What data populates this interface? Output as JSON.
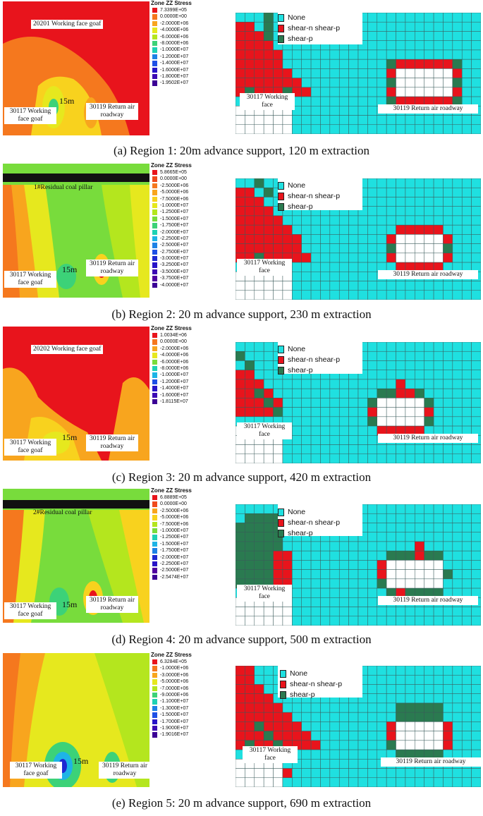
{
  "legend_title": "Zone ZZ Stress",
  "state_colors": {
    "None": "#1fe0e0",
    "shear-n shear-p": "#e8141c",
    "shear-p": "#2a7a50"
  },
  "state_legend": [
    "None",
    "shear-n shear-p",
    "shear-p"
  ],
  "panels": [
    {
      "caption": "(a) Region 1: 20m advance support, 120 m extraction",
      "top_label": "20201 Working face goaf",
      "left_label": "30117 Working face goaf",
      "right_label": "30119 Return air roadway",
      "distance": "15m",
      "grid_left_label": "30117 Working face",
      "grid_right_label": "30119 Return air  roadway",
      "stress_levels": [
        "7.3399E+05",
        "0.0000E+00",
        "-2.0000E+06",
        "-4.0000E+06",
        "-6.0000E+06",
        "-8.0000E+06",
        "-1.0000E+07",
        "-1.2000E+07",
        "-1.4000E+07",
        "-1.6000E+07",
        "-1.8000E+07",
        "-1.9502E+07"
      ]
    },
    {
      "caption": "(b) Region 2: 20 m advance  support,  230  m extraction",
      "top_label": "1#Residual coal pillar",
      "left_label": "30117 Working face goaf",
      "right_label": "30119 Return air roadway",
      "distance": "15m",
      "grid_left_label": "30117 Working face",
      "grid_right_label": "30119 Return air  roadway",
      "stress_levels": [
        "5.8665E+05",
        "0.0000E+00",
        "-2.5000E+06",
        "-5.0000E+06",
        "-7.5000E+06",
        "-1.0000E+07",
        "-1.2500E+07",
        "-1.5000E+07",
        "-1.7500E+07",
        "-2.0000E+07",
        "-2.2500E+07",
        "-2.5000E+07",
        "-2.7500E+07",
        "-3.0000E+07",
        "-3.2500E+07",
        "-3.5000E+07",
        "-3.7500E+07",
        "-4.0000E+07"
      ]
    },
    {
      "caption": "(c) Region 3: 20 m advance  support,  420  m extraction",
      "top_label": "20202 Working  face goaf",
      "left_label": "30117 Working face goaf",
      "right_label": "30119 Return air roadway",
      "distance": "15m",
      "grid_left_label": "30117 Working face",
      "grid_right_label": "30119 Return air  roadway",
      "stress_levels": [
        "1.0034E+06",
        "0.0000E+00",
        "-2.0000E+06",
        "-4.0000E+06",
        "-6.0000E+06",
        "-8.0000E+06",
        "-1.0000E+07",
        "-1.2000E+07",
        "-1.4000E+07",
        "-1.6000E+07",
        "-1.8115E+07"
      ]
    },
    {
      "caption": "(d) Region 4: 20 m advance  support,  500  m extraction",
      "top_label": "2#Residual coal pillar",
      "left_label": "30117 Working face goaf",
      "right_label": "30119 Return air roadway",
      "distance": "15m",
      "grid_left_label": "30117 Working face",
      "grid_right_label": "30119 Return air  roadway",
      "stress_levels": [
        "6.8889E+05",
        "0.0000E+00",
        "-2.5000E+06",
        "-5.0000E+06",
        "-7.5000E+06",
        "-1.0000E+07",
        "-1.2500E+07",
        "-1.5000E+07",
        "-1.7500E+07",
        "-2.0000E+07",
        "-2.2500E+07",
        "-2.5000E+07",
        "-2.5474E+07"
      ]
    },
    {
      "caption": "(e) Region 5: 20 m advance  support,  690  m extraction",
      "top_label": "",
      "left_label": "30117 Working face goaf",
      "right_label": "30119 Return air roadway",
      "distance": "15m",
      "grid_left_label": "30117 Working face",
      "grid_right_label": "30119 Return air  roadway",
      "stress_levels": [
        "6.3284E+05",
        "-1.0000E+06",
        "-3.0000E+06",
        "-5.0000E+06",
        "-7.0000E+06",
        "-9.0000E+06",
        "-1.1000E+07",
        "-1.3000E+07",
        "-1.5000E+07",
        "-1.7000E+07",
        "-1.9000E+07",
        "-1.9016E+07"
      ]
    }
  ]
}
